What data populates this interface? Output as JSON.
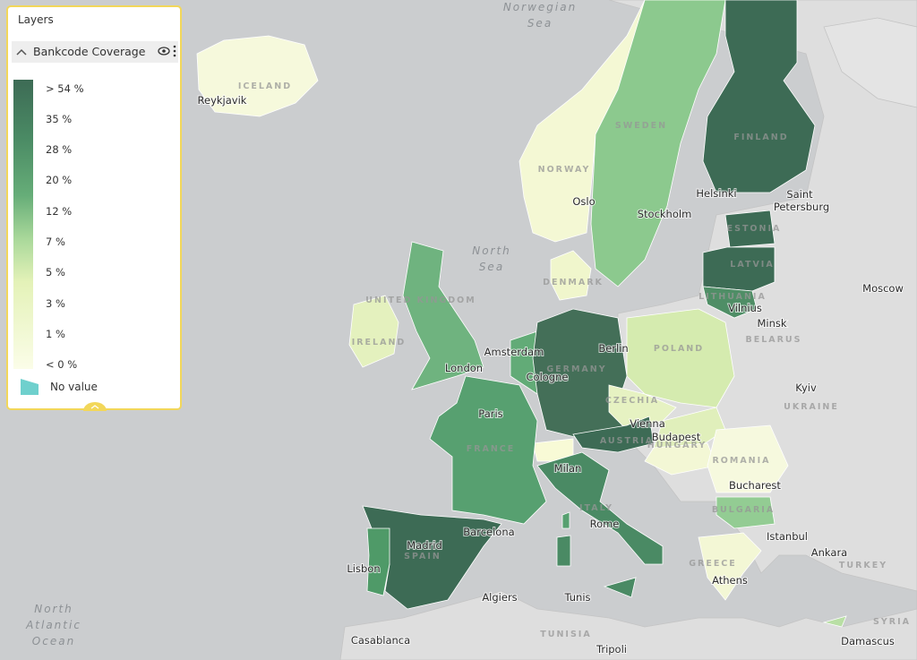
{
  "panel": {
    "title": "Layers",
    "layer_name": "Bankcode Coverage",
    "legend": [
      "> 54 %",
      "35 %",
      "28 %",
      "20 %",
      "12 %",
      "7 %",
      "5 %",
      "3 %",
      "1 %",
      "< 0 %"
    ],
    "no_value": "No value"
  },
  "map": {
    "seas": [
      [
        "Norwegian",
        "Sea"
      ],
      [
        "North",
        "Sea"
      ],
      [
        "North",
        "Atlantic",
        "Ocean"
      ]
    ],
    "countries": [
      "ICELAND",
      "NORWAY",
      "SWEDEN",
      "FINLAND",
      "ESTONIA",
      "LATVIA",
      "LITHUANIA",
      "DENMARK",
      "UNITED KINGDOM",
      "IRELAND",
      "POLAND",
      "BELARUS",
      "UKRAINE",
      "GERMANY",
      "CZECHIA",
      "AUSTRIA",
      "HUNGARY",
      "ROMANIA",
      "BULGARIA",
      "FRANCE",
      "ITALY",
      "SPAIN",
      "GREECE",
      "TURKEY",
      "TUNISIA",
      "SYRIA"
    ],
    "cities": [
      "Reykjavik",
      "Helsinki",
      "Saint",
      "Petersburg",
      "Oslo",
      "Stockholm",
      "Moscow",
      "Minsk",
      "Vilnius",
      "Amsterdam",
      "Berlin",
      "London",
      "Cologne",
      "Paris",
      "Kyiv",
      "Vienna",
      "Budapest",
      "Milan",
      "Bucharest",
      "Barcelona",
      "Rome",
      "Madrid",
      "Lisbon",
      "Istanbul",
      "Ankara",
      "Athens",
      "Algiers",
      "Tunis",
      "Casablanca",
      "Tripoli",
      "Damascus"
    ]
  }
}
